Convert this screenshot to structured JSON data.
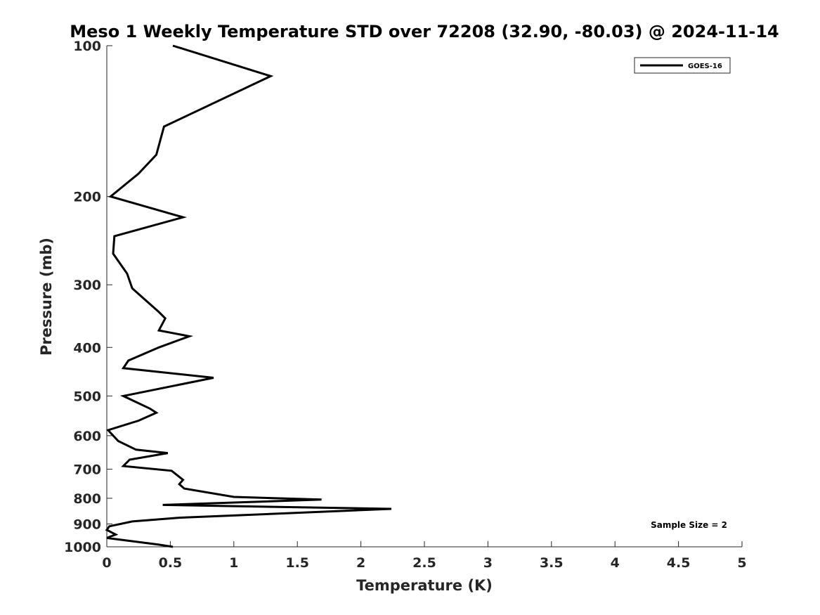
{
  "chart_data": {
    "type": "line",
    "title": "Meso 1 Weekly Temperature STD over 72208 (32.90, -80.03) @ 2024-11-14",
    "xlabel": "Temperature (K)",
    "ylabel": "Pressure (mb)",
    "xlim": [
      0,
      5
    ],
    "ylim": [
      100,
      1000
    ],
    "y_scale": "log",
    "y_reversed": true,
    "grid": false,
    "legend_position": "top-right",
    "x_ticks": [
      "0",
      "0.5",
      "1",
      "1.5",
      "2",
      "2.5",
      "3",
      "3.5",
      "4",
      "4.5",
      "5"
    ],
    "y_ticks": [
      "100",
      "200",
      "300",
      "400",
      "500",
      "600",
      "700",
      "800",
      "900",
      "1000"
    ],
    "series": [
      {
        "name": "GOES-16",
        "color": "#000000",
        "x": [
          0.52,
          0.41,
          0.0,
          0.07,
          0.0,
          0.02,
          0.2,
          0.56,
          2.24,
          0.44,
          1.69,
          1.0,
          0.61,
          0.57,
          0.6,
          0.51,
          0.13,
          0.18,
          0.48,
          0.23,
          0.09,
          0.01,
          0.25,
          0.39,
          0.34,
          0.13,
          0.84,
          0.13,
          0.17,
          0.41,
          0.65,
          0.41,
          0.46,
          0.41,
          0.2,
          0.16,
          0.05,
          0.06,
          0.6,
          0.03,
          0.25,
          0.39,
          0.45,
          1.29,
          0.52
        ],
        "y": [
          1000,
          990,
          960,
          945,
          925,
          910,
          890,
          875,
          840,
          825,
          805,
          795,
          765,
          750,
          735,
          705,
          690,
          670,
          650,
          640,
          615,
          585,
          560,
          540,
          530,
          500,
          460,
          440,
          425,
          400,
          380,
          370,
          350,
          340,
          305,
          285,
          260,
          240,
          220,
          200,
          180,
          165,
          145,
          115,
          100
        ]
      }
    ],
    "legend": [
      "GOES-16"
    ],
    "annotation": "Sample Size = 2"
  }
}
